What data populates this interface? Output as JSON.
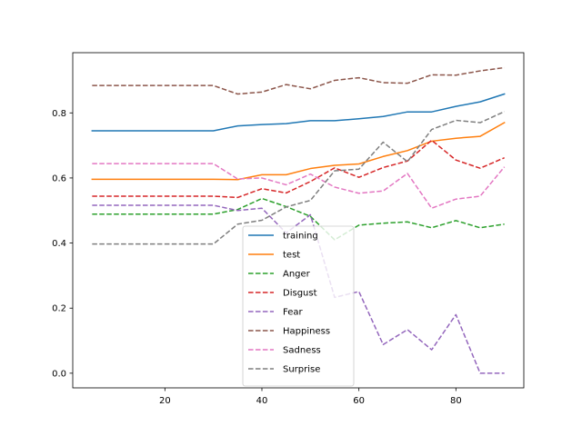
{
  "chart_data": {
    "type": "line",
    "title": "",
    "xlabel": "",
    "ylabel": "",
    "xlim": [
      1.0,
      94.0
    ],
    "ylim": [
      -0.045,
      0.985
    ],
    "xticks": [
      20,
      40,
      60,
      80
    ],
    "yticks": [
      0.0,
      0.2,
      0.4,
      0.6,
      0.8
    ],
    "xtick_labels": [
      "20",
      "40",
      "60",
      "80"
    ],
    "ytick_labels": [
      "0.0",
      "0.2",
      "0.4",
      "0.6",
      "0.8"
    ],
    "grid": false,
    "legend_placement": "bottom-center",
    "x": [
      5,
      10,
      15,
      20,
      25,
      30,
      35,
      40,
      45,
      50,
      55,
      60,
      65,
      70,
      75,
      80,
      85,
      90
    ],
    "series": [
      {
        "name": "training",
        "color": "#1f77b4",
        "dash": "solid",
        "values": [
          0.745,
          0.745,
          0.745,
          0.745,
          0.745,
          0.745,
          0.76,
          0.764,
          0.767,
          0.776,
          0.776,
          0.782,
          0.789,
          0.803,
          0.803,
          0.82,
          0.834,
          0.858
        ]
      },
      {
        "name": "test",
        "color": "#ff7f0e",
        "dash": "solid",
        "values": [
          0.596,
          0.596,
          0.596,
          0.596,
          0.596,
          0.596,
          0.595,
          0.61,
          0.61,
          0.629,
          0.639,
          0.643,
          0.666,
          0.684,
          0.713,
          0.722,
          0.728,
          0.77
        ]
      },
      {
        "name": "Anger",
        "color": "#2ca02c",
        "dash": "dashed",
        "values": [
          0.489,
          0.489,
          0.489,
          0.489,
          0.489,
          0.489,
          0.503,
          0.537,
          0.512,
          0.482,
          0.41,
          0.455,
          0.461,
          0.465,
          0.447,
          0.469,
          0.447,
          0.458
        ]
      },
      {
        "name": "Disgust",
        "color": "#d62728",
        "dash": "dashed",
        "values": [
          0.544,
          0.544,
          0.544,
          0.544,
          0.544,
          0.544,
          0.54,
          0.567,
          0.554,
          0.589,
          0.631,
          0.602,
          0.632,
          0.652,
          0.716,
          0.655,
          0.63,
          0.662
        ]
      },
      {
        "name": "Fear",
        "color": "#9467bd",
        "dash": "dashed",
        "values": [
          0.516,
          0.516,
          0.516,
          0.516,
          0.516,
          0.516,
          0.5,
          0.507,
          0.431,
          0.487,
          0.233,
          0.251,
          0.088,
          0.134,
          0.072,
          0.18,
          0.0,
          0.0
        ]
      },
      {
        "name": "Happiness",
        "color": "#8c564b",
        "dash": "dashed",
        "values": [
          0.884,
          0.884,
          0.884,
          0.884,
          0.884,
          0.884,
          0.858,
          0.864,
          0.887,
          0.874,
          0.9,
          0.908,
          0.893,
          0.891,
          0.917,
          0.916,
          0.929,
          0.939
        ]
      },
      {
        "name": "Sadness",
        "color": "#e377c2",
        "dash": "dashed",
        "values": [
          0.644,
          0.644,
          0.644,
          0.644,
          0.644,
          0.644,
          0.597,
          0.6,
          0.579,
          0.612,
          0.572,
          0.553,
          0.56,
          0.614,
          0.507,
          0.535,
          0.544,
          0.634
        ]
      },
      {
        "name": "Surprise",
        "color": "#7f7f7f",
        "dash": "dashed",
        "values": [
          0.397,
          0.397,
          0.397,
          0.397,
          0.397,
          0.397,
          0.458,
          0.47,
          0.511,
          0.531,
          0.622,
          0.627,
          0.71,
          0.65,
          0.749,
          0.777,
          0.77,
          0.804
        ]
      }
    ]
  }
}
